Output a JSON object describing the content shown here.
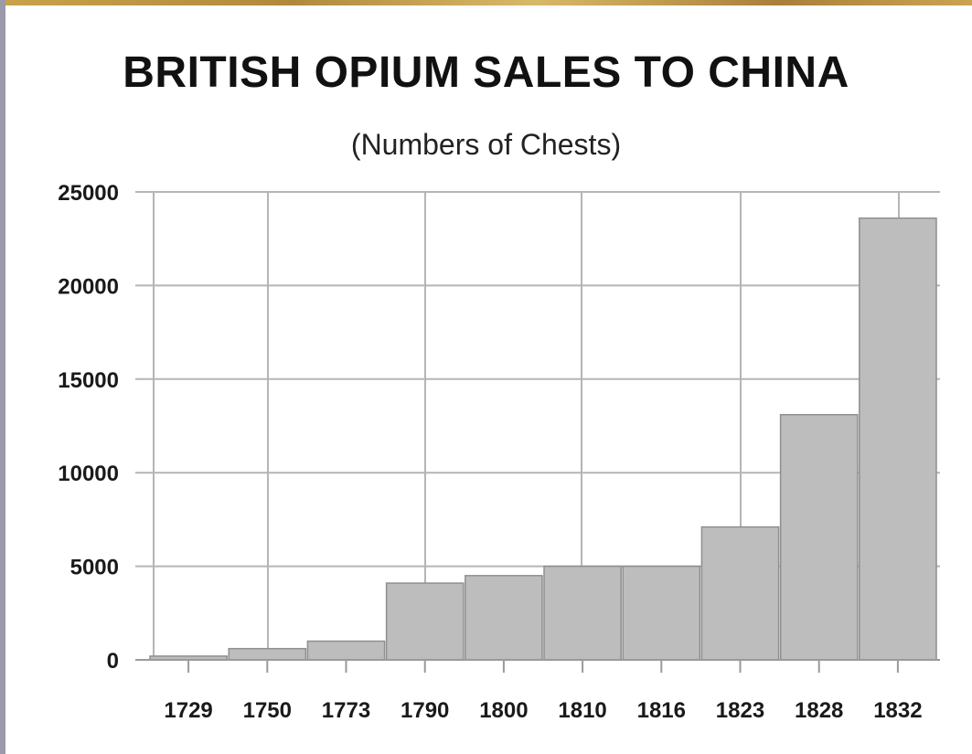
{
  "chart_data": {
    "type": "bar",
    "title": "BRITISH OPIUM SALES TO CHINA",
    "subtitle": "(Numbers of Chests)",
    "xlabel": "",
    "ylabel": "",
    "categories": [
      "1729",
      "1750",
      "1773",
      "1790",
      "1800",
      "1810",
      "1816",
      "1823",
      "1828",
      "1832"
    ],
    "values": [
      200,
      600,
      1000,
      4100,
      4500,
      5000,
      5000,
      7100,
      13100,
      23600
    ],
    "ylim": [
      0,
      25000
    ],
    "yticks": [
      "0",
      "5000",
      "10000",
      "15000",
      "20000",
      "25000"
    ],
    "grid": true,
    "legend": "none",
    "bar_color": "#bdbdbd",
    "bar_edge_color": "#8f8f8f",
    "grid_color": "#b5b5b5"
  }
}
